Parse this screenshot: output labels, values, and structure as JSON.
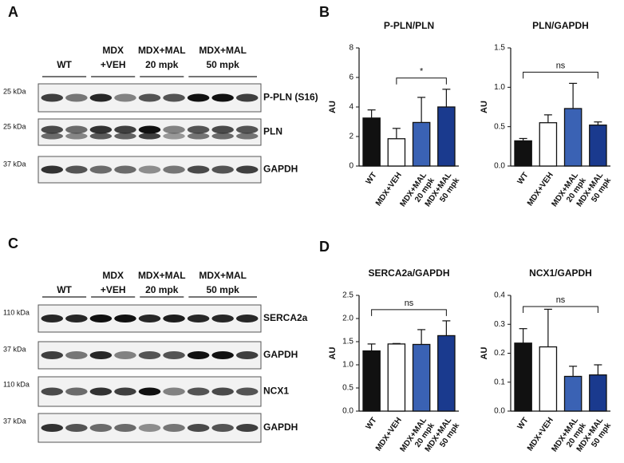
{
  "panel_labels": [
    "A",
    "B",
    "C",
    "D"
  ],
  "blots": [
    {
      "lanes_header": [
        [
          "WT"
        ],
        [
          "MDX",
          "+VEH"
        ],
        [
          "MDX+MAL",
          "20 mpk"
        ],
        [
          "MDX+MAL",
          "50 mpk"
        ]
      ],
      "rows": [
        {
          "size": "25 kDa",
          "name": "P-PLN (S16)"
        },
        {
          "size": "25 kDa",
          "name": "PLN"
        },
        {
          "size": "37 kDa",
          "name": "GAPDH"
        }
      ]
    },
    {
      "lanes_header": [
        [
          "WT"
        ],
        [
          "MDX",
          "+VEH"
        ],
        [
          "MDX+MAL",
          "20 mpk"
        ],
        [
          "MDX+MAL",
          "50 mpk"
        ]
      ],
      "rows": [
        {
          "size": "110 kDa",
          "name": "SERCA2a"
        },
        {
          "size": "37 kDa",
          "name": "GAPDH"
        },
        {
          "size": "110 kDa",
          "name": "NCX1"
        },
        {
          "size": "37 kDa",
          "name": "GAPDH"
        }
      ]
    }
  ],
  "chart_data": [
    {
      "type": "bar",
      "title": "P-PLN/PLN",
      "ylabel": "AU",
      "categories": [
        [
          "WT"
        ],
        [
          "MDX+VEH"
        ],
        [
          "MDX+MAL",
          "20 mpk"
        ],
        [
          "MDX+MAL",
          "50 mpk"
        ]
      ],
      "values": [
        3.25,
        1.85,
        2.95,
        4.0
      ],
      "errors": [
        0.55,
        0.7,
        1.7,
        1.2
      ],
      "colors": [
        "#111111",
        "#ffffff",
        "#3a62b4",
        "#1a3a8e"
      ],
      "ylim": [
        0,
        8
      ],
      "yticks": [
        0,
        2,
        4,
        6,
        8
      ],
      "comparison": {
        "groups": [
          1,
          3
        ],
        "label": "*"
      }
    },
    {
      "type": "bar",
      "title": "PLN/GAPDH",
      "ylabel": "AU",
      "categories": [
        [
          "WT"
        ],
        [
          "MDX+VEH"
        ],
        [
          "MDX+MAL",
          "20 mpk"
        ],
        [
          "MDX+MAL",
          "50 mpk"
        ]
      ],
      "values": [
        0.32,
        0.55,
        0.73,
        0.52
      ],
      "errors": [
        0.03,
        0.1,
        0.32,
        0.04
      ],
      "colors": [
        "#111111",
        "#ffffff",
        "#3a62b4",
        "#1a3a8e"
      ],
      "ylim": [
        0,
        1.5
      ],
      "yticks": [
        {
          "value": 0,
          "label": "0.0"
        },
        0.5,
        {
          "value": 1,
          "label": "1.0"
        },
        1.5
      ],
      "comparison": {
        "groups": [
          0,
          3
        ],
        "label": "ns"
      }
    },
    {
      "type": "bar",
      "title": "SERCA2a/GAPDH",
      "ylabel": "AU",
      "categories": [
        [
          "WT"
        ],
        [
          "MDX+VEH"
        ],
        [
          "MDX+MAL",
          "20 mpk"
        ],
        [
          "MDX+MAL",
          "50 mpk"
        ]
      ],
      "values": [
        1.3,
        1.45,
        1.44,
        1.63
      ],
      "errors": [
        0.15,
        0.01,
        0.32,
        0.32
      ],
      "colors": [
        "#111111",
        "#ffffff",
        "#3a62b4",
        "#1a3a8e"
      ],
      "ylim": [
        0,
        2.5
      ],
      "yticks": [
        {
          "value": 0,
          "label": "0.0"
        },
        0.5,
        {
          "value": 1,
          "label": "1.0"
        },
        1.5,
        {
          "value": 2,
          "label": "2.0"
        },
        2.5
      ],
      "comparison": {
        "groups": [
          0,
          3
        ],
        "label": "ns"
      }
    },
    {
      "type": "bar",
      "title": "NCX1/GAPDH",
      "ylabel": "AU",
      "categories": [
        [
          "WT"
        ],
        [
          "MDX+VEH"
        ],
        [
          "MDX+MAL",
          "20 mpk"
        ],
        [
          "MDX+MAL",
          "50 mpk"
        ]
      ],
      "values": [
        0.235,
        0.222,
        0.12,
        0.125
      ],
      "errors": [
        0.05,
        0.13,
        0.035,
        0.035
      ],
      "colors": [
        "#111111",
        "#ffffff",
        "#3a62b4",
        "#1a3a8e"
      ],
      "ylim": [
        0,
        0.4
      ],
      "yticks": [
        {
          "value": 0,
          "label": "0.0"
        },
        0.1,
        0.2,
        0.3,
        0.4
      ],
      "comparison": {
        "groups": [
          0,
          3
        ],
        "label": "ns"
      }
    }
  ]
}
